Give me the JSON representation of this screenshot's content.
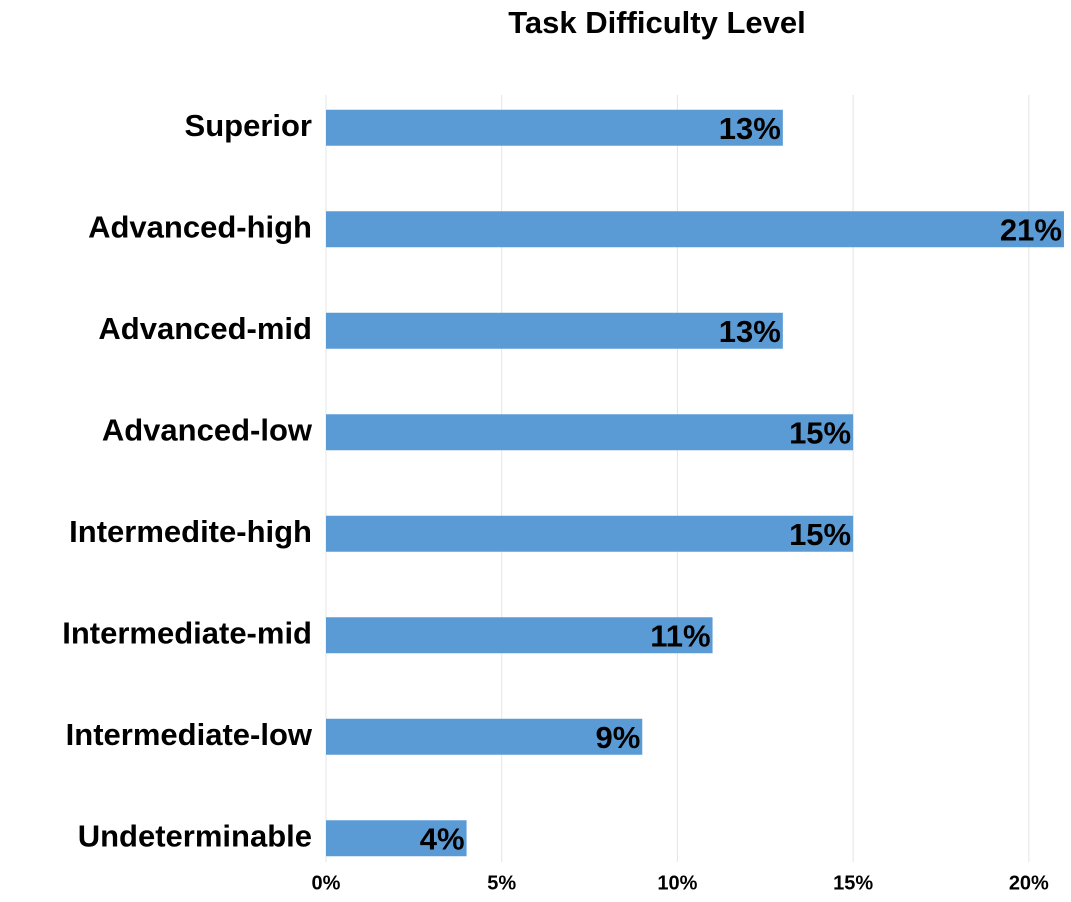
{
  "chart_data": {
    "type": "bar",
    "orientation": "horizontal",
    "title": "Task Difficulty Level",
    "categories": [
      "Superior",
      "Advanced-high",
      "Advanced-mid",
      "Advanced-low",
      "Intermedite-high",
      "Intermediate-mid",
      "Intermediate-low",
      "Undeterminable"
    ],
    "values": [
      13,
      21,
      13,
      15,
      15,
      11,
      9,
      4
    ],
    "value_labels": [
      "13%",
      "21%",
      "13%",
      "15%",
      "15%",
      "11%",
      "9%",
      "4%"
    ],
    "color": "#5b9bd5",
    "xlim": [
      0,
      21.2
    ],
    "xticks": [
      {
        "value": 0,
        "label": "0%"
      },
      {
        "value": 5,
        "label": "5%"
      },
      {
        "value": 10,
        "label": "10%"
      },
      {
        "value": 15,
        "label": "15%"
      },
      {
        "value": 20,
        "label": "20%"
      }
    ],
    "grid": true
  }
}
